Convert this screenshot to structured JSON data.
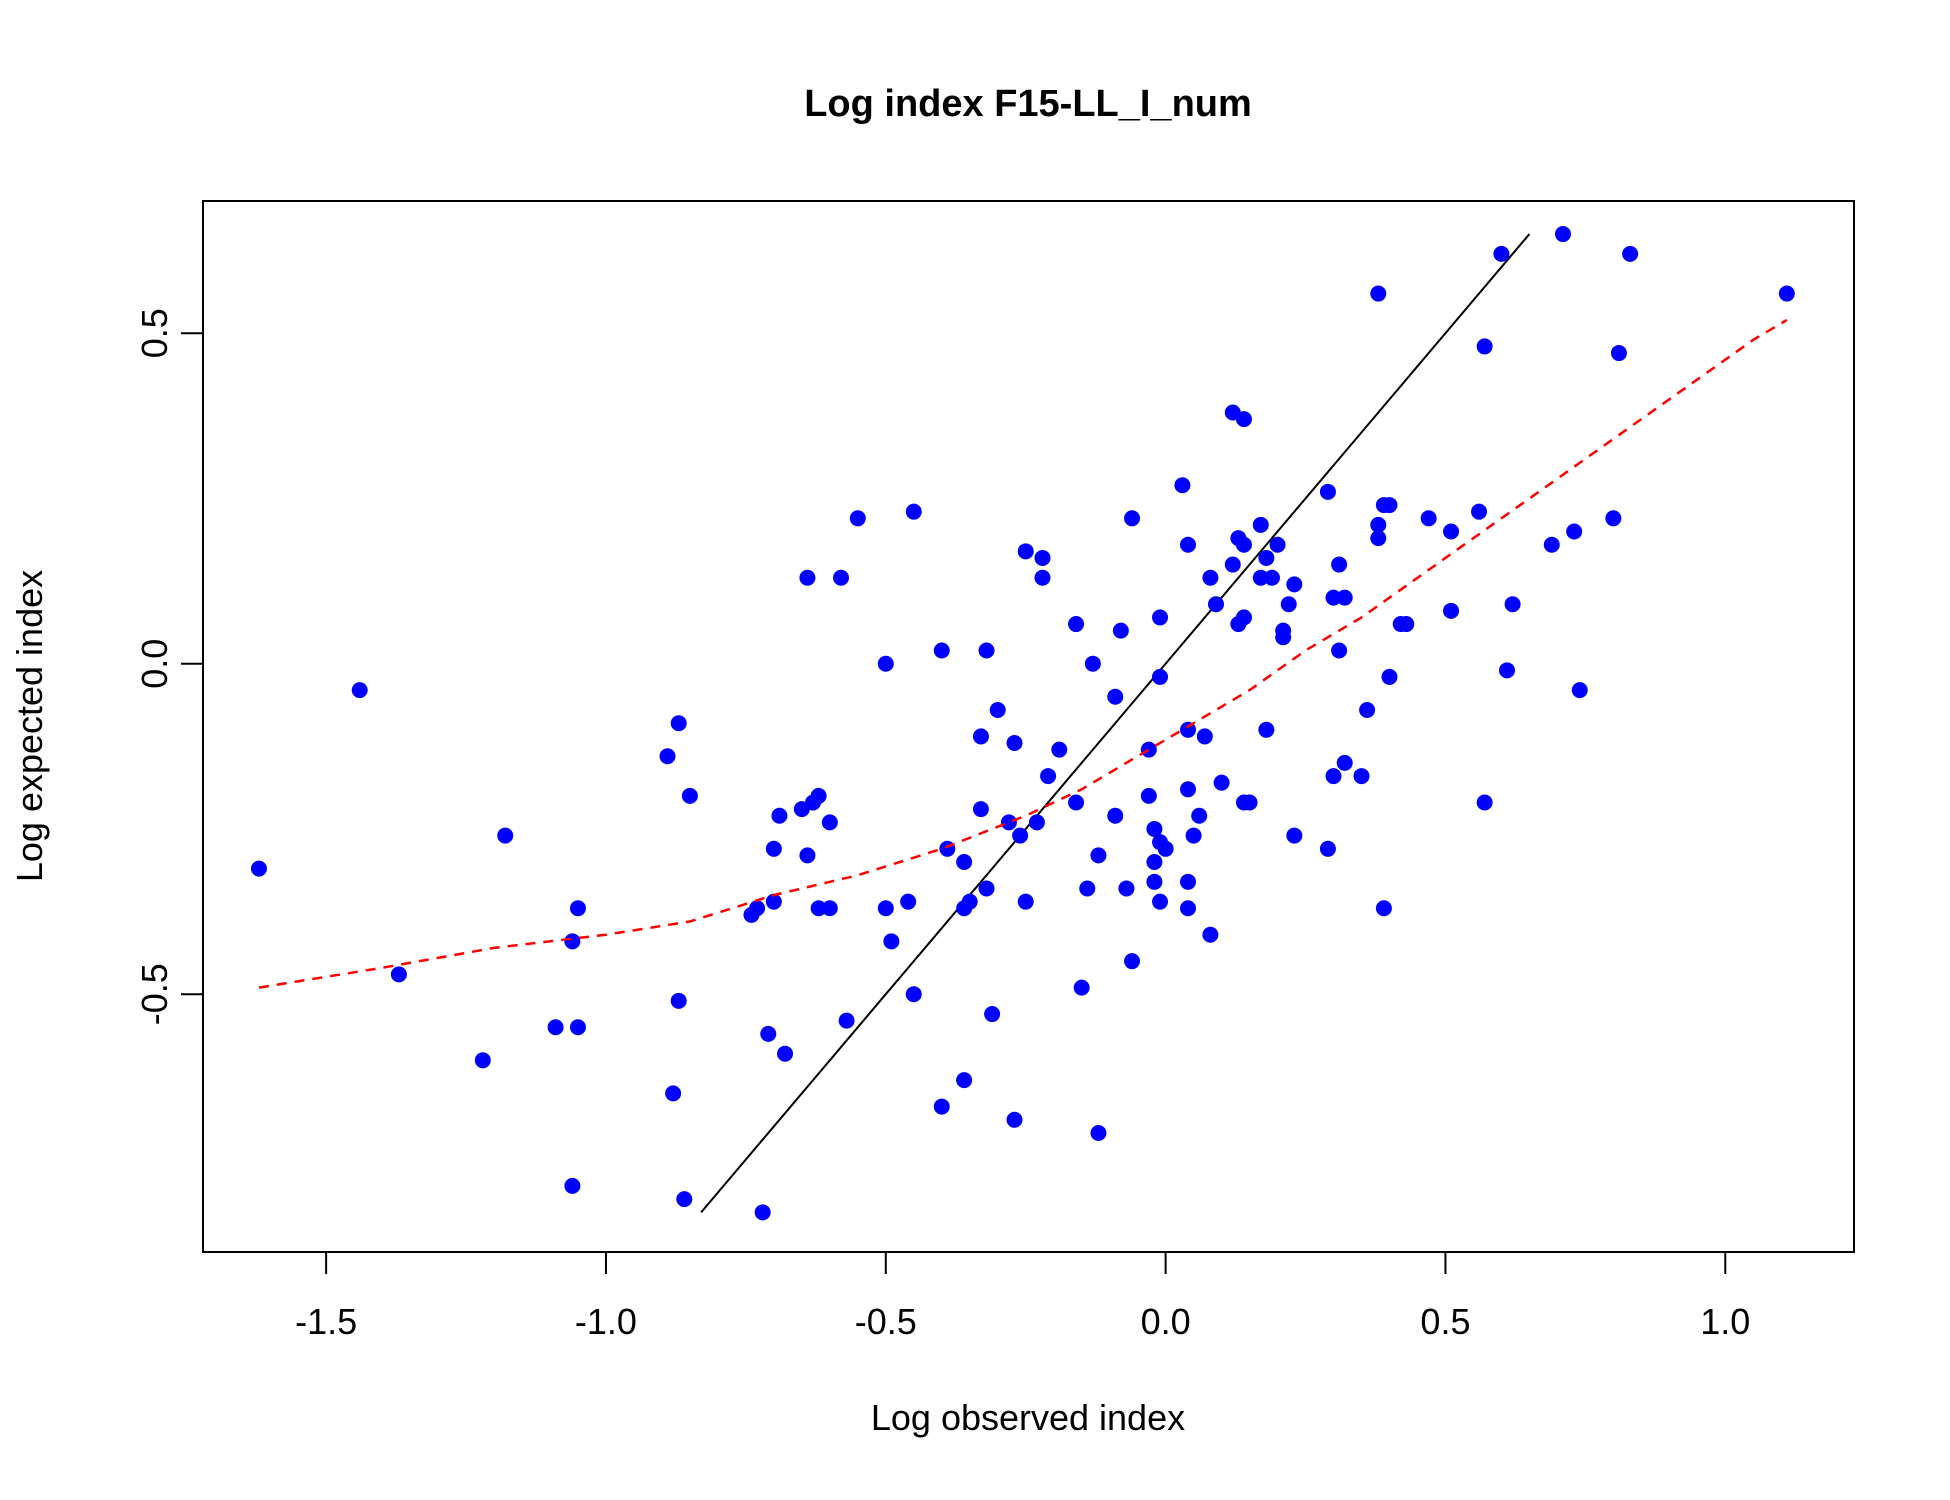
{
  "chart_data": {
    "type": "scatter",
    "title": "Log index F15-LL_I_num",
    "xlabel": "Log observed index",
    "ylabel": "Log expected index",
    "xlim": [
      -1.72,
      1.23
    ],
    "ylim": [
      -0.89,
      0.7
    ],
    "x_ticks": [
      -1.5,
      -1.0,
      -0.5,
      0.0,
      0.5,
      1.0
    ],
    "x_tick_labels": [
      "-1.5",
      "-1.0",
      "-0.5",
      "0.0",
      "0.5",
      "1.0"
    ],
    "y_ticks": [
      -0.5,
      0.0,
      0.5
    ],
    "y_tick_labels": [
      "-0.5",
      "0.0",
      "0.5"
    ],
    "grid": false,
    "colors": {
      "points": "#0000ff",
      "identity_line": "#000000",
      "smooth_line": "#ff0000"
    },
    "points": [
      [
        -1.62,
        -0.31
      ],
      [
        -1.44,
        -0.04
      ],
      [
        -1.37,
        -0.47
      ],
      [
        -1.22,
        -0.6
      ],
      [
        -1.18,
        -0.26
      ],
      [
        -1.09,
        -0.55
      ],
      [
        -1.06,
        -0.42
      ],
      [
        -1.05,
        -0.37
      ],
      [
        -1.05,
        -0.55
      ],
      [
        -1.06,
        -0.79
      ],
      [
        -0.89,
        -0.14
      ],
      [
        -0.87,
        -0.09
      ],
      [
        -0.85,
        -0.2
      ],
      [
        -0.87,
        -0.51
      ],
      [
        -0.88,
        -0.65
      ],
      [
        -0.86,
        -0.81
      ],
      [
        -0.74,
        -0.38
      ],
      [
        -0.73,
        -0.37
      ],
      [
        -0.7,
        -0.36
      ],
      [
        -0.69,
        -0.23
      ],
      [
        -0.7,
        -0.28
      ],
      [
        -0.71,
        -0.56
      ],
      [
        -0.68,
        -0.59
      ],
      [
        -0.72,
        -0.83
      ],
      [
        -0.65,
        -0.22
      ],
      [
        -0.63,
        -0.21
      ],
      [
        -0.62,
        -0.2
      ],
      [
        -0.64,
        -0.29
      ],
      [
        -0.62,
        -0.37
      ],
      [
        -0.6,
        -0.37
      ],
      [
        -0.6,
        -0.24
      ],
      [
        -0.64,
        0.13
      ],
      [
        -0.58,
        0.13
      ],
      [
        -0.55,
        0.22
      ],
      [
        -0.57,
        -0.54
      ],
      [
        -0.5,
        0.0
      ],
      [
        -0.5,
        -0.37
      ],
      [
        -0.49,
        -0.42
      ],
      [
        -0.46,
        -0.36
      ],
      [
        -0.45,
        0.23
      ],
      [
        -0.45,
        -0.5
      ],
      [
        -0.4,
        0.02
      ],
      [
        -0.39,
        -0.28
      ],
      [
        -0.36,
        -0.3
      ],
      [
        -0.36,
        -0.37
      ],
      [
        -0.35,
        -0.36
      ],
      [
        -0.33,
        -0.11
      ],
      [
        -0.33,
        -0.22
      ],
      [
        -0.32,
        -0.34
      ],
      [
        -0.32,
        0.02
      ],
      [
        -0.31,
        -0.53
      ],
      [
        -0.36,
        -0.63
      ],
      [
        -0.4,
        -0.67
      ],
      [
        -0.3,
        -0.07
      ],
      [
        -0.28,
        -0.24
      ],
      [
        -0.27,
        -0.12
      ],
      [
        -0.26,
        -0.26
      ],
      [
        -0.25,
        0.17
      ],
      [
        -0.25,
        -0.36
      ],
      [
        -0.27,
        -0.69
      ],
      [
        -0.23,
        -0.24
      ],
      [
        -0.22,
        0.16
      ],
      [
        -0.22,
        0.13
      ],
      [
        -0.21,
        -0.17
      ],
      [
        -0.19,
        -0.13
      ],
      [
        -0.16,
        0.06
      ],
      [
        -0.16,
        -0.21
      ],
      [
        -0.15,
        -0.49
      ],
      [
        -0.14,
        -0.34
      ],
      [
        -0.13,
        0.0
      ],
      [
        -0.12,
        -0.29
      ],
      [
        -0.12,
        -0.71
      ],
      [
        -0.09,
        -0.05
      ],
      [
        -0.08,
        0.05
      ],
      [
        -0.07,
        -0.34
      ],
      [
        -0.09,
        -0.23
      ],
      [
        -0.06,
        0.22
      ],
      [
        -0.06,
        -0.45
      ],
      [
        -0.03,
        -0.13
      ],
      [
        -0.03,
        -0.2
      ],
      [
        -0.02,
        -0.25
      ],
      [
        -0.02,
        -0.3
      ],
      [
        -0.02,
        -0.33
      ],
      [
        -0.01,
        -0.27
      ],
      [
        -0.01,
        0.07
      ],
      [
        -0.01,
        -0.02
      ],
      [
        0.0,
        -0.28
      ],
      [
        -0.01,
        -0.36
      ],
      [
        0.03,
        0.27
      ],
      [
        0.04,
        0.18
      ],
      [
        0.04,
        -0.1
      ],
      [
        0.04,
        -0.19
      ],
      [
        0.05,
        -0.26
      ],
      [
        0.04,
        -0.33
      ],
      [
        0.04,
        -0.37
      ],
      [
        0.06,
        -0.23
      ],
      [
        0.07,
        -0.11
      ],
      [
        0.08,
        0.13
      ],
      [
        0.08,
        -0.41
      ],
      [
        0.09,
        0.09
      ],
      [
        0.1,
        -0.18
      ],
      [
        0.12,
        0.38
      ],
      [
        0.14,
        0.37
      ],
      [
        0.12,
        0.15
      ],
      [
        0.13,
        0.19
      ],
      [
        0.14,
        0.18
      ],
      [
        0.13,
        0.06
      ],
      [
        0.14,
        0.07
      ],
      [
        0.14,
        -0.21
      ],
      [
        0.15,
        -0.21
      ],
      [
        0.17,
        0.21
      ],
      [
        0.17,
        0.13
      ],
      [
        0.18,
        0.16
      ],
      [
        0.18,
        -0.1
      ],
      [
        0.19,
        0.13
      ],
      [
        0.2,
        0.18
      ],
      [
        0.21,
        0.04
      ],
      [
        0.21,
        0.05
      ],
      [
        0.22,
        0.09
      ],
      [
        0.23,
        0.12
      ],
      [
        0.23,
        -0.26
      ],
      [
        0.29,
        0.26
      ],
      [
        0.29,
        -0.28
      ],
      [
        0.3,
        -0.17
      ],
      [
        0.3,
        0.1
      ],
      [
        0.31,
        0.15
      ],
      [
        0.31,
        0.02
      ],
      [
        0.32,
        0.1
      ],
      [
        0.32,
        -0.15
      ],
      [
        0.35,
        -0.17
      ],
      [
        0.36,
        -0.07
      ],
      [
        0.38,
        0.56
      ],
      [
        0.38,
        0.19
      ],
      [
        0.38,
        0.21
      ],
      [
        0.39,
        0.24
      ],
      [
        0.4,
        0.24
      ],
      [
        0.4,
        -0.02
      ],
      [
        0.42,
        0.06
      ],
      [
        0.43,
        0.06
      ],
      [
        0.39,
        -0.37
      ],
      [
        0.47,
        0.22
      ],
      [
        0.51,
        0.08
      ],
      [
        0.51,
        0.2
      ],
      [
        0.56,
        0.23
      ],
      [
        0.57,
        0.48
      ],
      [
        0.57,
        -0.21
      ],
      [
        0.6,
        0.62
      ],
      [
        0.61,
        -0.01
      ],
      [
        0.62,
        0.09
      ],
      [
        0.69,
        0.18
      ],
      [
        0.71,
        0.65
      ],
      [
        0.73,
        0.2
      ],
      [
        0.74,
        -0.04
      ],
      [
        0.8,
        0.22
      ],
      [
        0.81,
        0.47
      ],
      [
        0.83,
        0.62
      ],
      [
        1.11,
        0.56
      ]
    ],
    "identity_line": [
      [
        -0.83,
        -0.83
      ],
      [
        0.65,
        0.65
      ]
    ],
    "smooth_line": [
      [
        -1.62,
        -0.49
      ],
      [
        -1.4,
        -0.46
      ],
      [
        -1.2,
        -0.43
      ],
      [
        -1.0,
        -0.41
      ],
      [
        -0.85,
        -0.39
      ],
      [
        -0.7,
        -0.35
      ],
      [
        -0.55,
        -0.32
      ],
      [
        -0.4,
        -0.28
      ],
      [
        -0.25,
        -0.23
      ],
      [
        -0.15,
        -0.19
      ],
      [
        -0.05,
        -0.14
      ],
      [
        0.05,
        -0.09
      ],
      [
        0.15,
        -0.04
      ],
      [
        0.25,
        0.02
      ],
      [
        0.35,
        0.07
      ],
      [
        0.45,
        0.13
      ],
      [
        0.55,
        0.19
      ],
      [
        0.65,
        0.25
      ],
      [
        0.75,
        0.31
      ],
      [
        0.85,
        0.37
      ],
      [
        0.95,
        0.43
      ],
      [
        1.05,
        0.49
      ],
      [
        1.11,
        0.52
      ]
    ]
  }
}
